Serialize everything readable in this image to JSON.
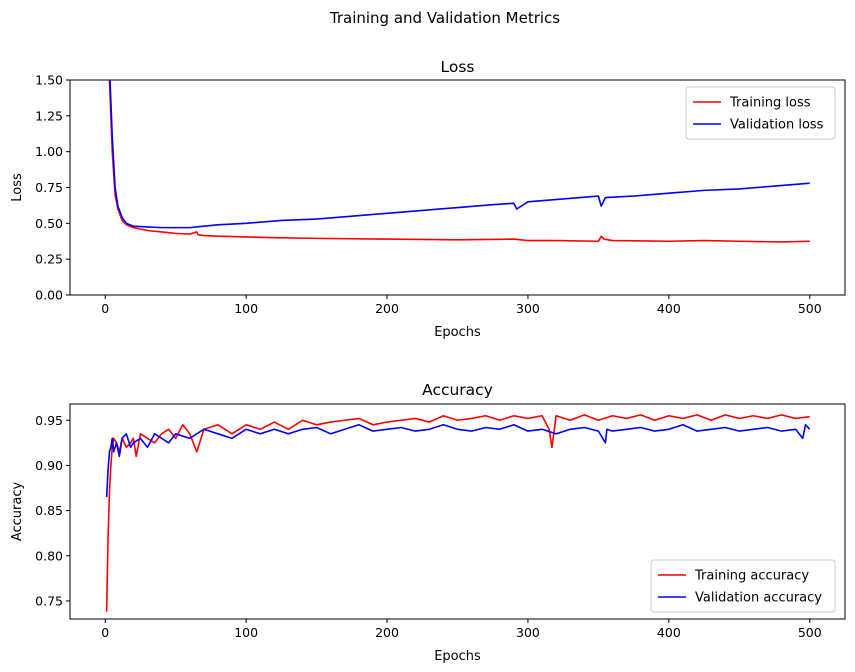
{
  "figure": {
    "suptitle": "Training and Validation Metrics"
  },
  "chart_data": [
    {
      "type": "line",
      "title": "Loss",
      "xlabel": "Epochs",
      "ylabel": "Loss",
      "xlim": [
        -25,
        525
      ],
      "ylim": [
        0,
        1.5
      ],
      "xticks": [
        0,
        100,
        200,
        300,
        400,
        500
      ],
      "yticks": [
        0,
        0.25,
        0.5,
        0.75,
        1.0,
        1.25,
        1.5
      ],
      "ytick_labels": [
        "0.00",
        "0.25",
        "0.50",
        "0.75",
        "1.00",
        "1.25",
        "1.50"
      ],
      "legend_position": "top-right",
      "grid": false,
      "series": [
        {
          "name": "Training loss",
          "color": "#ff0000",
          "x": [
            1,
            3,
            5,
            7,
            9,
            12,
            15,
            20,
            30,
            40,
            50,
            60,
            65,
            66,
            70,
            80,
            100,
            120,
            150,
            200,
            250,
            290,
            300,
            320,
            350,
            352,
            354,
            360,
            400,
            425,
            450,
            480,
            500
          ],
          "y": [
            2.5,
            1.5,
            1.0,
            0.7,
            0.6,
            0.52,
            0.49,
            0.47,
            0.45,
            0.44,
            0.43,
            0.425,
            0.44,
            0.42,
            0.415,
            0.41,
            0.405,
            0.4,
            0.395,
            0.39,
            0.385,
            0.39,
            0.38,
            0.38,
            0.375,
            0.41,
            0.39,
            0.38,
            0.375,
            0.38,
            0.375,
            0.37,
            0.375
          ]
        },
        {
          "name": "Validation loss",
          "color": "#0000ff",
          "x": [
            1,
            3,
            5,
            7,
            9,
            12,
            15,
            20,
            30,
            40,
            50,
            60,
            70,
            80,
            100,
            125,
            150,
            175,
            200,
            225,
            250,
            275,
            290,
            292,
            300,
            325,
            350,
            352,
            355,
            375,
            400,
            425,
            450,
            475,
            500
          ],
          "y": [
            2.5,
            1.6,
            1.1,
            0.75,
            0.62,
            0.54,
            0.5,
            0.48,
            0.475,
            0.47,
            0.47,
            0.47,
            0.48,
            0.49,
            0.5,
            0.52,
            0.53,
            0.55,
            0.57,
            0.59,
            0.61,
            0.63,
            0.64,
            0.6,
            0.65,
            0.67,
            0.69,
            0.62,
            0.68,
            0.69,
            0.71,
            0.73,
            0.74,
            0.76,
            0.78
          ]
        }
      ]
    },
    {
      "type": "line",
      "title": "Accuracy",
      "xlabel": "Epochs",
      "ylabel": "Accuracy",
      "xlim": [
        -25,
        525
      ],
      "ylim": [
        0.73,
        0.968
      ],
      "xticks": [
        0,
        100,
        200,
        300,
        400,
        500
      ],
      "yticks": [
        0.75,
        0.8,
        0.85,
        0.9,
        0.95
      ],
      "ytick_labels": [
        "0.75",
        "0.80",
        "0.85",
        "0.90",
        "0.95"
      ],
      "legend_position": "bottom-right",
      "grid": false,
      "series": [
        {
          "name": "Training accuracy",
          "color": "#ff0000",
          "x": [
            1,
            2,
            3,
            4,
            5,
            6,
            8,
            10,
            12,
            15,
            18,
            20,
            22,
            25,
            30,
            35,
            40,
            45,
            50,
            55,
            60,
            65,
            70,
            80,
            90,
            100,
            110,
            120,
            130,
            140,
            150,
            160,
            170,
            180,
            190,
            200,
            210,
            220,
            230,
            240,
            250,
            260,
            270,
            280,
            290,
            300,
            310,
            315,
            317,
            320,
            330,
            340,
            350,
            360,
            370,
            380,
            390,
            400,
            410,
            420,
            430,
            440,
            450,
            460,
            470,
            480,
            490,
            500
          ],
          "y": [
            0.738,
            0.82,
            0.87,
            0.9,
            0.92,
            0.93,
            0.925,
            0.915,
            0.93,
            0.92,
            0.925,
            0.93,
            0.91,
            0.935,
            0.93,
            0.925,
            0.935,
            0.94,
            0.93,
            0.945,
            0.935,
            0.915,
            0.94,
            0.945,
            0.935,
            0.945,
            0.94,
            0.948,
            0.94,
            0.95,
            0.945,
            0.948,
            0.95,
            0.952,
            0.945,
            0.948,
            0.95,
            0.952,
            0.948,
            0.955,
            0.95,
            0.952,
            0.955,
            0.95,
            0.955,
            0.952,
            0.955,
            0.94,
            0.92,
            0.955,
            0.95,
            0.956,
            0.95,
            0.955,
            0.952,
            0.956,
            0.95,
            0.955,
            0.952,
            0.956,
            0.95,
            0.956,
            0.952,
            0.955,
            0.952,
            0.956,
            0.952,
            0.954
          ]
        },
        {
          "name": "Validation accuracy",
          "color": "#0000ff",
          "x": [
            1,
            2,
            3,
            4,
            5,
            6,
            8,
            10,
            12,
            15,
            18,
            20,
            25,
            30,
            35,
            40,
            45,
            50,
            60,
            70,
            80,
            90,
            100,
            110,
            120,
            130,
            140,
            150,
            160,
            170,
            180,
            190,
            200,
            210,
            220,
            230,
            240,
            250,
            260,
            270,
            280,
            290,
            300,
            310,
            320,
            330,
            340,
            350,
            355,
            356,
            360,
            370,
            380,
            390,
            400,
            410,
            420,
            430,
            440,
            450,
            460,
            470,
            480,
            490,
            495,
            497,
            500
          ],
          "y": [
            0.865,
            0.895,
            0.915,
            0.92,
            0.93,
            0.915,
            0.925,
            0.91,
            0.93,
            0.935,
            0.92,
            0.925,
            0.93,
            0.92,
            0.935,
            0.93,
            0.925,
            0.935,
            0.93,
            0.94,
            0.935,
            0.93,
            0.94,
            0.935,
            0.94,
            0.935,
            0.94,
            0.942,
            0.935,
            0.94,
            0.945,
            0.938,
            0.94,
            0.942,
            0.938,
            0.94,
            0.945,
            0.94,
            0.938,
            0.942,
            0.94,
            0.945,
            0.938,
            0.94,
            0.935,
            0.94,
            0.942,
            0.938,
            0.925,
            0.94,
            0.938,
            0.94,
            0.942,
            0.938,
            0.94,
            0.945,
            0.938,
            0.94,
            0.942,
            0.938,
            0.94,
            0.942,
            0.938,
            0.94,
            0.93,
            0.945,
            0.94
          ]
        }
      ]
    }
  ]
}
